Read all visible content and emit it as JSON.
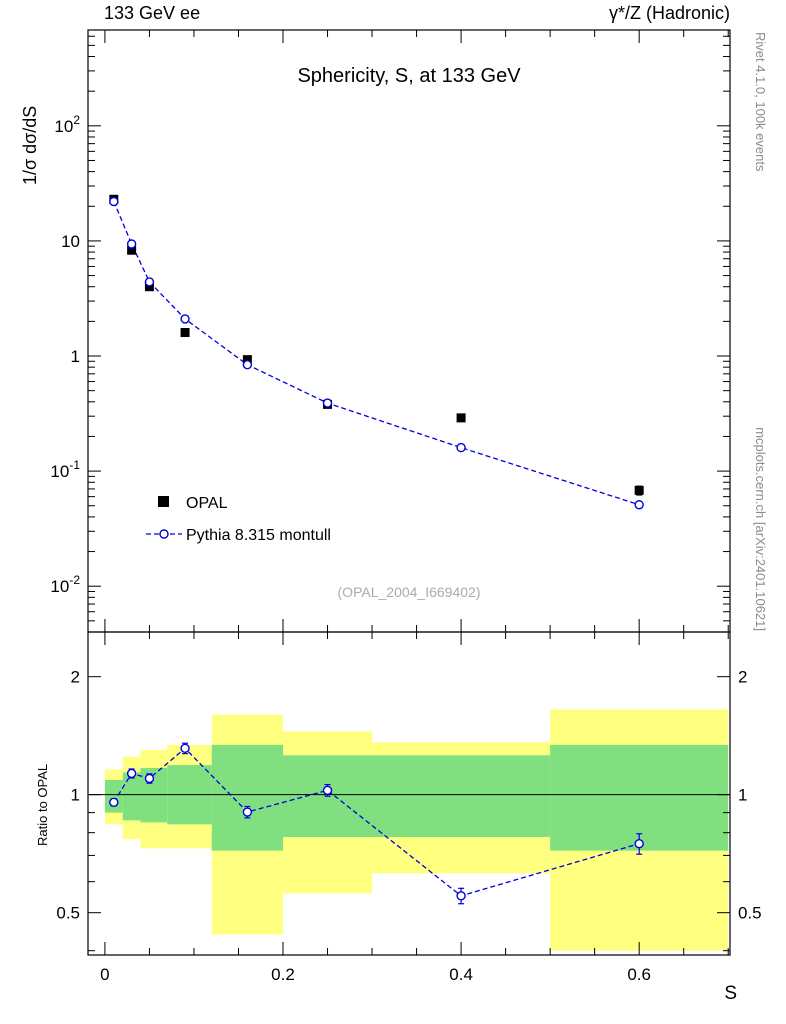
{
  "header": {
    "left": "133 GeV ee",
    "right": "γ*/Z (Hadronic)"
  },
  "watermarks": {
    "rivet": "Rivet 4.1.0,  100k events",
    "mcplots": "mcplots.cern.ch [arXiv:2401.10621]",
    "analysis": "(OPAL_2004_I669402)"
  },
  "chart_data": {
    "type": "scatter",
    "title": "Sphericity, S, at 133 GeV",
    "xlabel": "S",
    "ylabel": "1/σ  dσ/dS",
    "ratio_ylabel": "Ratio to OPAL",
    "xlim": [
      -0.019,
      0.702
    ],
    "x_ticks": [
      {
        "v": 0,
        "t": "0"
      },
      {
        "v": 0.2,
        "t": "0.2"
      },
      {
        "v": 0.4,
        "t": "0.4"
      },
      {
        "v": 0.6,
        "t": "0.6"
      }
    ],
    "x_minor_step": 0.05,
    "colors": {
      "band_outer": "#ffff80",
      "band_inner": "#80e080",
      "mc_blue": "#0000dd"
    },
    "legend_position": "inside-lower-left",
    "main": {
      "yscale": "log",
      "ylim": [
        0.004,
        680
      ],
      "y_ticks": [
        {
          "v": 100,
          "t": "10",
          "e": "2"
        },
        {
          "v": 10,
          "t": "10",
          "e": ""
        },
        {
          "v": 1,
          "t": "1",
          "e": ""
        },
        {
          "v": 0.1,
          "t": "10",
          "e": "-1"
        },
        {
          "v": 0.01,
          "t": "10",
          "e": "-2"
        }
      ],
      "series": [
        {
          "name": "OPAL",
          "marker": "filled-square",
          "color": "#000000",
          "x": [
            0.01,
            0.03,
            0.05,
            0.09,
            0.16,
            0.25,
            0.4,
            0.6
          ],
          "y": [
            23,
            8.3,
            4.0,
            1.6,
            0.93,
            0.38,
            0.29,
            0.068
          ],
          "yerr": [
            1.0,
            0.35,
            0.18,
            0.07,
            0.04,
            0.018,
            0.014,
            0.006
          ]
        },
        {
          "name": "Pythia 8.315 montull",
          "marker": "open-circle",
          "color": "#0000dd",
          "line": "dashed",
          "x": [
            0.01,
            0.03,
            0.05,
            0.09,
            0.16,
            0.25,
            0.4,
            0.6
          ],
          "y": [
            22,
            9.4,
            4.4,
            2.1,
            0.84,
            0.39,
            0.16,
            0.051
          ],
          "yerr": [
            0.3,
            0.12,
            0.06,
            0.03,
            0.012,
            0.006,
            0.003,
            0.0015
          ]
        }
      ]
    },
    "ratio": {
      "yscale": "log",
      "ylim": [
        0.39,
        2.6
      ],
      "y_ticks": [
        {
          "v": 2,
          "t": "2"
        },
        {
          "v": 1,
          "t": "1"
        },
        {
          "v": 0.5,
          "t": "0.5"
        }
      ],
      "x": [
        0.01,
        0.03,
        0.05,
        0.09,
        0.16,
        0.25,
        0.4,
        0.6
      ],
      "y": [
        0.956,
        1.133,
        1.1,
        1.313,
        0.903,
        1.026,
        0.552,
        0.75
      ],
      "yerr": [
        0.02,
        0.03,
        0.03,
        0.04,
        0.03,
        0.035,
        0.025,
        0.045
      ],
      "bands": [
        {
          "x": [
            0.0,
            0.02
          ],
          "outer": [
            0.84,
            1.16
          ],
          "inner": [
            0.9,
            1.09
          ]
        },
        {
          "x": [
            0.02,
            0.04
          ],
          "outer": [
            0.77,
            1.25
          ],
          "inner": [
            0.86,
            1.14
          ]
        },
        {
          "x": [
            0.04,
            0.07
          ],
          "outer": [
            0.73,
            1.3
          ],
          "inner": [
            0.85,
            1.17
          ]
        },
        {
          "x": [
            0.07,
            0.12
          ],
          "outer": [
            0.73,
            1.34
          ],
          "inner": [
            0.84,
            1.19
          ]
        },
        {
          "x": [
            0.12,
            0.2
          ],
          "outer": [
            0.44,
            1.6
          ],
          "inner": [
            0.72,
            1.34
          ]
        },
        {
          "x": [
            0.2,
            0.3
          ],
          "outer": [
            0.56,
            1.45
          ],
          "inner": [
            0.78,
            1.26
          ]
        },
        {
          "x": [
            0.3,
            0.5
          ],
          "outer": [
            0.63,
            1.36
          ],
          "inner": [
            0.78,
            1.26
          ]
        },
        {
          "x": [
            0.5,
            0.7
          ],
          "outer": [
            0.4,
            1.65
          ],
          "inner": [
            0.72,
            1.34
          ]
        }
      ]
    }
  }
}
